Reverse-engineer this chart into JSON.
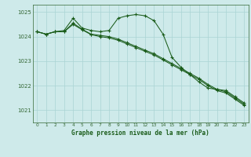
{
  "title": "Graphe pression niveau de la mer (hPa)",
  "background_color": "#ceeaea",
  "grid_color": "#aad4d4",
  "line_color": "#1a5c1a",
  "ylim": [
    1020.5,
    1025.3
  ],
  "xlim": [
    -0.5,
    23.5
  ],
  "yticks": [
    1021,
    1022,
    1023,
    1024,
    1025
  ],
  "xticks": [
    0,
    1,
    2,
    3,
    4,
    5,
    6,
    7,
    8,
    9,
    10,
    11,
    12,
    13,
    14,
    15,
    16,
    17,
    18,
    19,
    20,
    21,
    22,
    23
  ],
  "line1": [
    1024.2,
    1024.1,
    1024.2,
    1024.25,
    1024.75,
    1024.35,
    1024.25,
    1024.2,
    1024.25,
    1024.75,
    1024.85,
    1024.9,
    1024.85,
    1024.65,
    1024.1,
    1023.15,
    1022.75,
    1022.45,
    1022.15,
    1021.9,
    1021.85,
    1021.8,
    1021.55,
    1021.3
  ],
  "line2": [
    1024.2,
    1024.1,
    1024.2,
    1024.2,
    1024.55,
    1024.3,
    1024.1,
    1024.05,
    1024.0,
    1023.9,
    1023.75,
    1023.6,
    1023.45,
    1023.3,
    1023.1,
    1022.9,
    1022.7,
    1022.5,
    1022.3,
    1022.05,
    1021.85,
    1021.75,
    1021.5,
    1021.25
  ],
  "line3": [
    1024.2,
    1024.1,
    1024.2,
    1024.2,
    1024.5,
    1024.28,
    1024.08,
    1024.0,
    1023.95,
    1023.85,
    1023.7,
    1023.55,
    1023.4,
    1023.25,
    1023.05,
    1022.85,
    1022.65,
    1022.45,
    1022.25,
    1022.0,
    1021.8,
    1021.7,
    1021.45,
    1021.2
  ]
}
